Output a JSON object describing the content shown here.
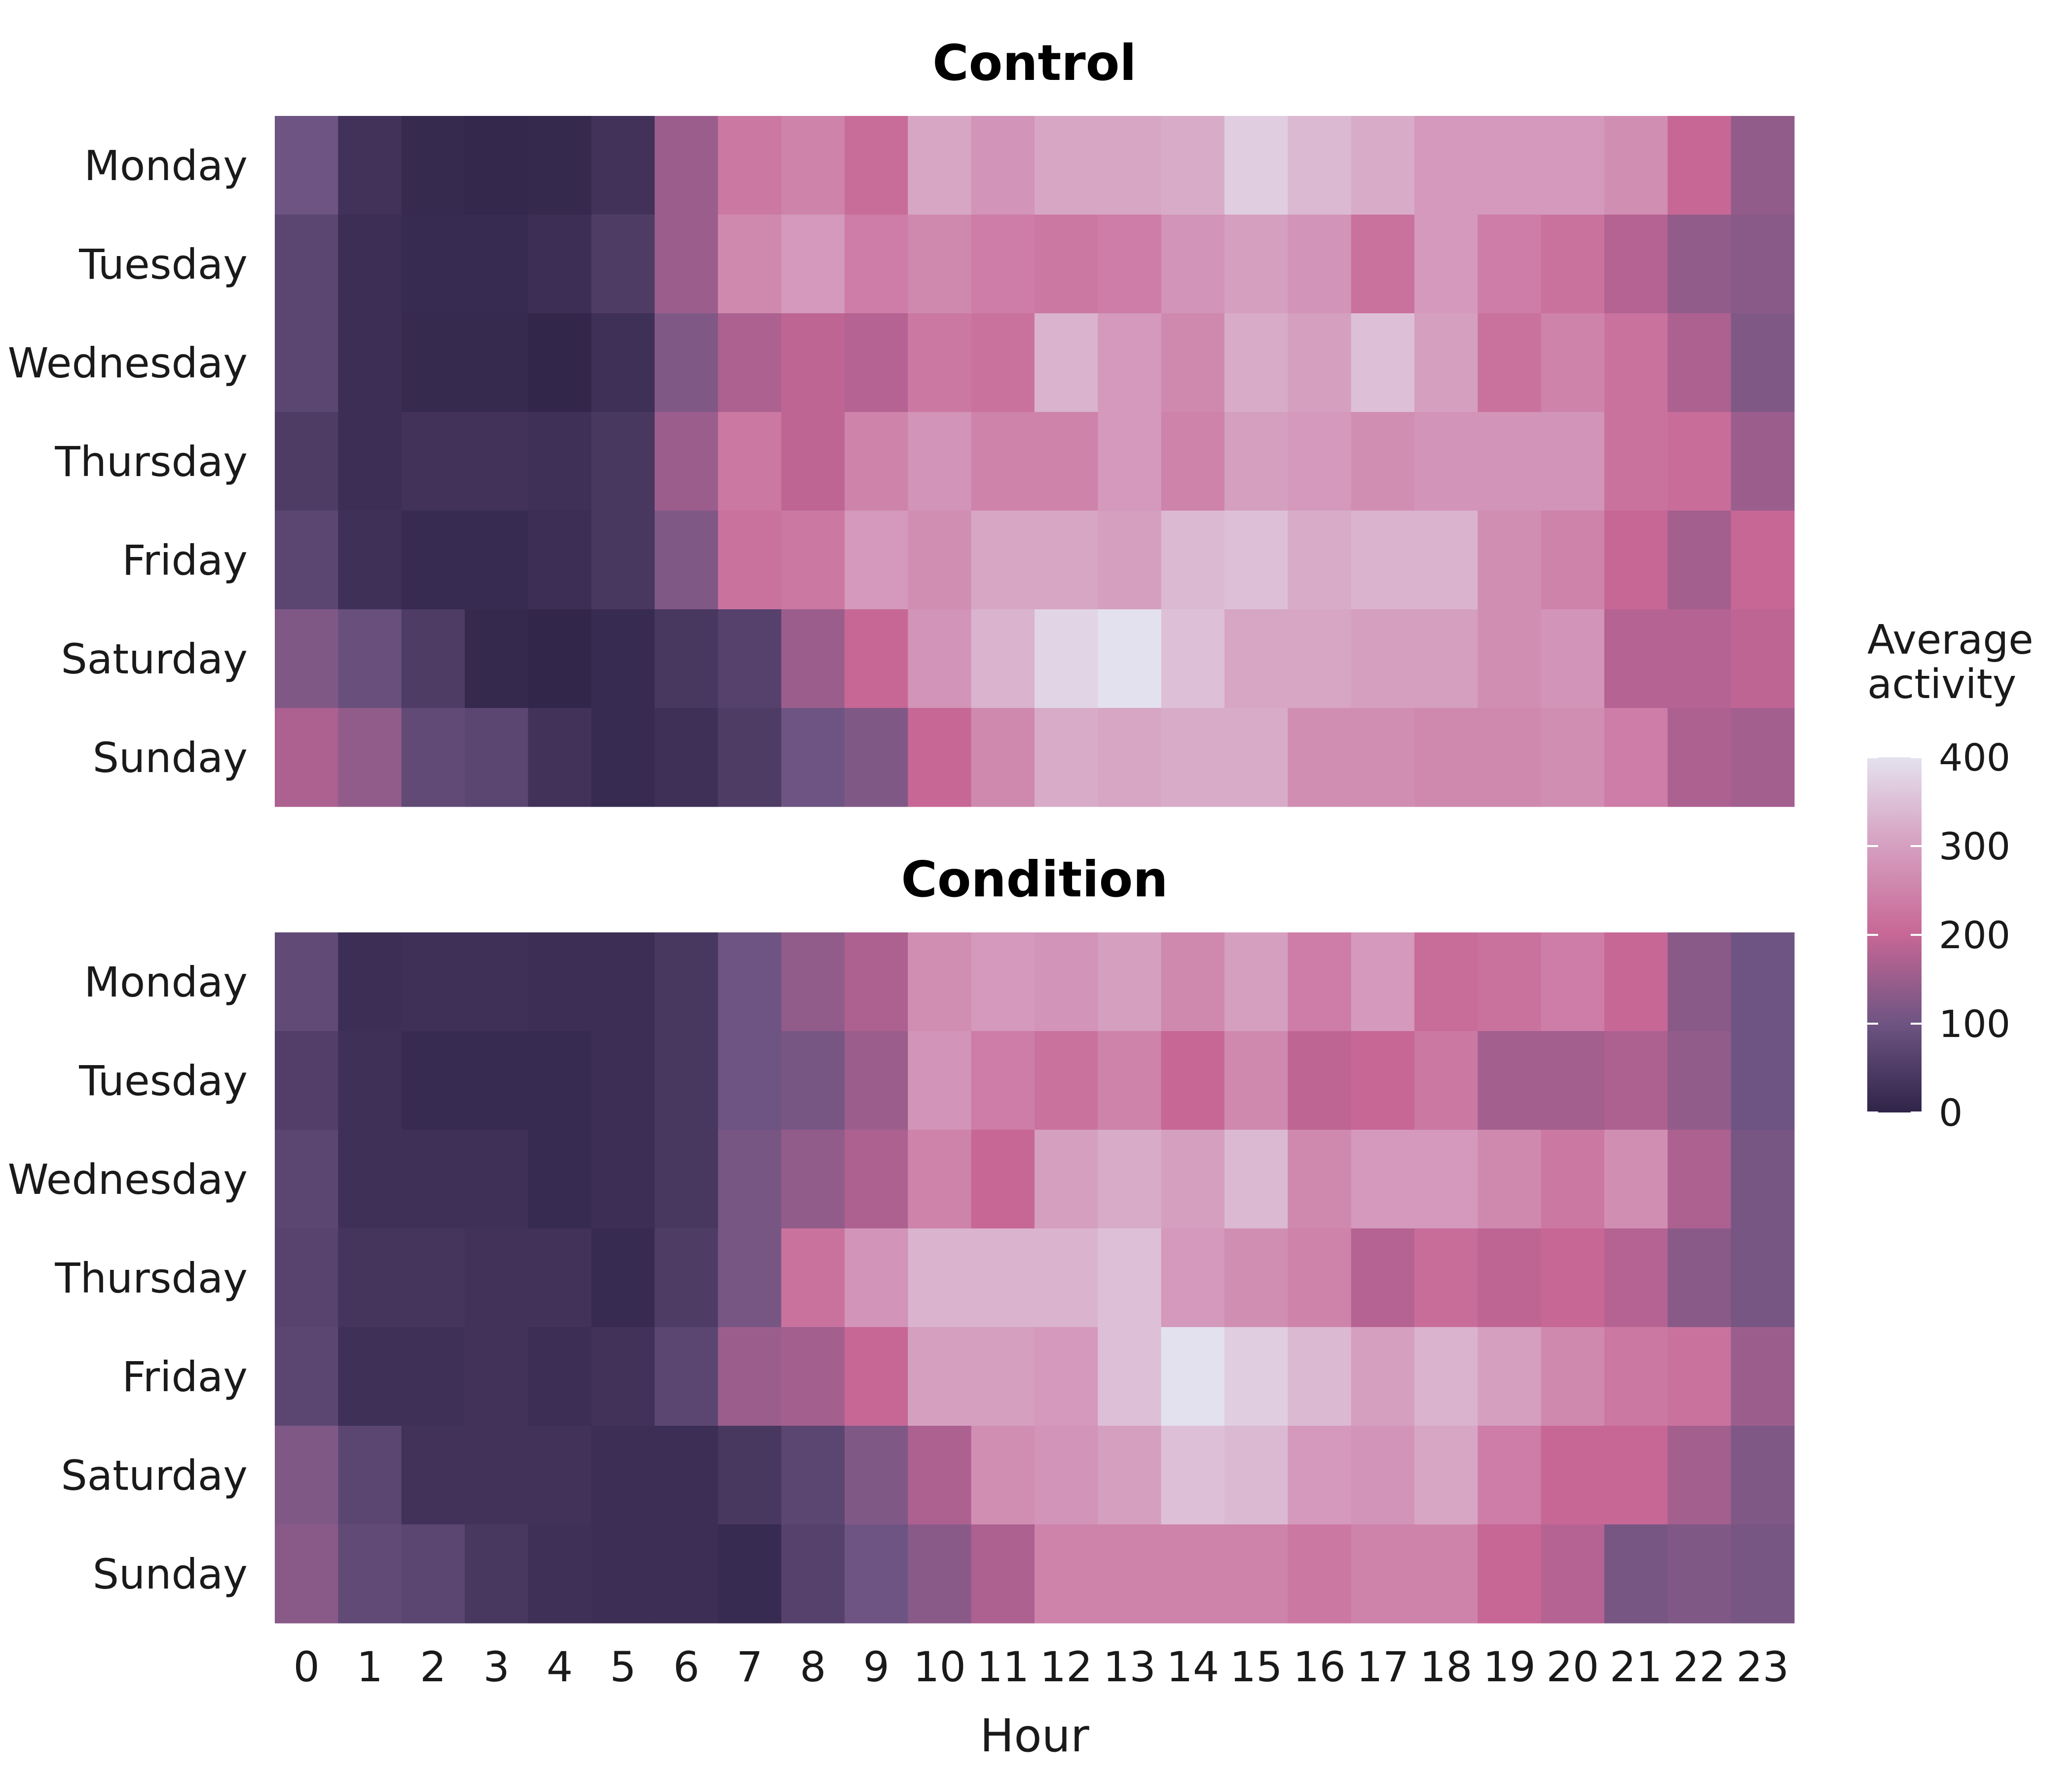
{
  "chart_data": {
    "type": "heatmap",
    "xlabel": "Hour",
    "hours": [
      "0",
      "1",
      "2",
      "3",
      "4",
      "5",
      "6",
      "7",
      "8",
      "9",
      "10",
      "11",
      "12",
      "13",
      "14",
      "15",
      "16",
      "17",
      "18",
      "19",
      "20",
      "21",
      "22",
      "23"
    ],
    "days": [
      "Monday",
      "Tuesday",
      "Wednesday",
      "Thursday",
      "Friday",
      "Saturday",
      "Sunday"
    ],
    "color_scale": {
      "title": "Average activity",
      "min": 0,
      "max": 400,
      "ticks": [
        0,
        100,
        200,
        300,
        400
      ],
      "stops": [
        {
          "value": 0,
          "color": "#2f2448"
        },
        {
          "value": 100,
          "color": "#6e5482"
        },
        {
          "value": 200,
          "color": "#c76796"
        },
        {
          "value": 300,
          "color": "#d59fc0"
        },
        {
          "value": 400,
          "color": "#e4e1ee"
        }
      ]
    },
    "panels": [
      {
        "title": "Control",
        "values": [
          [
            100,
            30,
            12,
            8,
            10,
            30,
            150,
            230,
            250,
            210,
            310,
            280,
            310,
            310,
            320,
            370,
            340,
            320,
            290,
            290,
            290,
            270,
            200,
            140
          ],
          [
            70,
            20,
            15,
            15,
            20,
            50,
            150,
            260,
            290,
            240,
            260,
            240,
            230,
            240,
            280,
            300,
            280,
            220,
            290,
            240,
            220,
            180,
            140,
            130
          ],
          [
            70,
            20,
            12,
            12,
            5,
            25,
            120,
            170,
            190,
            180,
            230,
            220,
            330,
            290,
            260,
            320,
            300,
            350,
            300,
            220,
            250,
            220,
            170,
            120
          ],
          [
            50,
            20,
            30,
            30,
            25,
            40,
            150,
            230,
            190,
            250,
            280,
            250,
            250,
            290,
            250,
            300,
            290,
            270,
            280,
            280,
            280,
            220,
            210,
            150
          ],
          [
            70,
            25,
            15,
            15,
            20,
            40,
            120,
            220,
            230,
            290,
            270,
            310,
            310,
            300,
            340,
            350,
            320,
            330,
            330,
            270,
            250,
            200,
            160,
            200
          ],
          [
            120,
            90,
            50,
            10,
            5,
            15,
            40,
            60,
            150,
            200,
            280,
            330,
            380,
            400,
            350,
            310,
            310,
            300,
            300,
            270,
            280,
            180,
            180,
            190
          ],
          [
            170,
            140,
            80,
            70,
            30,
            15,
            25,
            50,
            100,
            120,
            200,
            260,
            320,
            310,
            320,
            320,
            270,
            270,
            260,
            260,
            270,
            240,
            170,
            160
          ]
        ]
      },
      {
        "title": "Condition",
        "values": [
          [
            80,
            20,
            25,
            25,
            20,
            20,
            40,
            100,
            140,
            170,
            270,
            290,
            280,
            300,
            260,
            300,
            240,
            290,
            210,
            220,
            240,
            200,
            130,
            100
          ],
          [
            55,
            25,
            15,
            15,
            15,
            20,
            40,
            100,
            110,
            150,
            280,
            240,
            220,
            250,
            200,
            260,
            190,
            200,
            230,
            160,
            160,
            170,
            140,
            100
          ],
          [
            70,
            25,
            25,
            25,
            15,
            20,
            40,
            110,
            140,
            170,
            250,
            200,
            300,
            320,
            300,
            340,
            260,
            290,
            290,
            260,
            230,
            270,
            170,
            110
          ],
          [
            65,
            35,
            35,
            30,
            30,
            15,
            50,
            110,
            220,
            280,
            330,
            330,
            330,
            350,
            290,
            270,
            250,
            180,
            210,
            190,
            200,
            180,
            130,
            110
          ],
          [
            70,
            25,
            25,
            30,
            20,
            30,
            70,
            150,
            160,
            200,
            300,
            300,
            290,
            350,
            420,
            370,
            340,
            300,
            330,
            300,
            260,
            230,
            220,
            150
          ],
          [
            120,
            70,
            30,
            30,
            30,
            20,
            20,
            40,
            70,
            120,
            170,
            270,
            280,
            300,
            350,
            340,
            290,
            280,
            310,
            240,
            200,
            200,
            160,
            120
          ],
          [
            130,
            80,
            70,
            40,
            25,
            20,
            20,
            15,
            60,
            100,
            130,
            170,
            250,
            250,
            250,
            250,
            230,
            250,
            250,
            200,
            180,
            110,
            120,
            110
          ]
        ]
      }
    ]
  }
}
